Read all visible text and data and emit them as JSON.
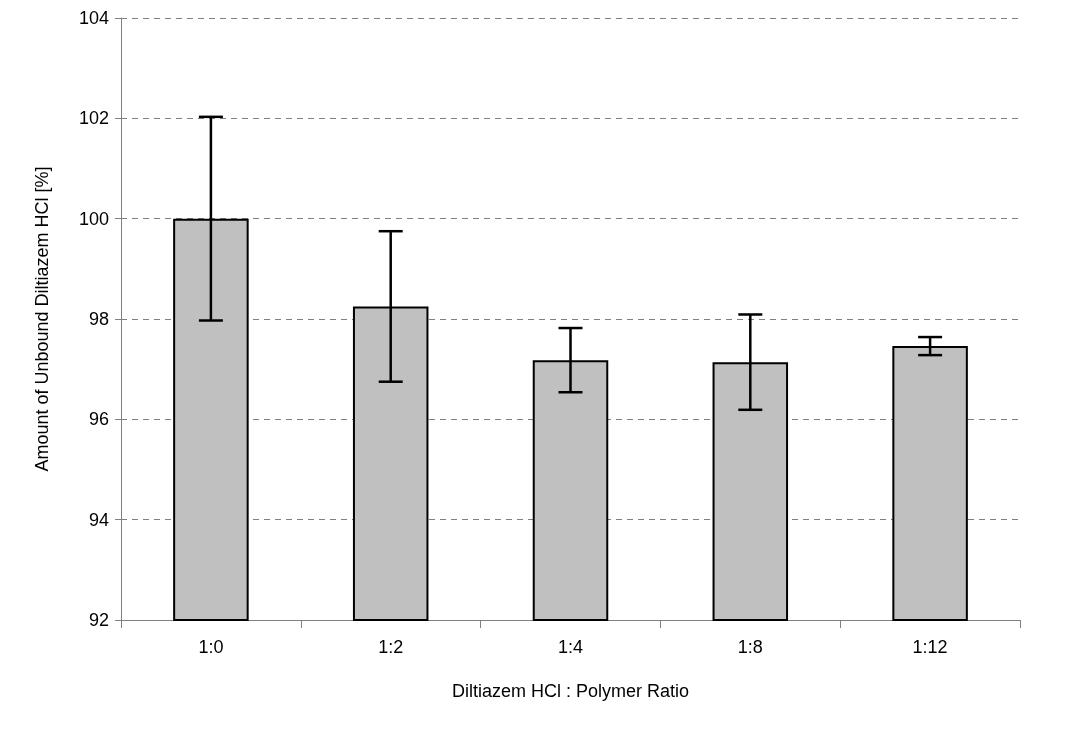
{
  "chart_data": {
    "type": "bar",
    "xlabel": "Diltiazem HCl : Polymer Ratio",
    "ylabel": "Amount of Unbound Diltiazem HCl [%]",
    "categories": [
      "1:0",
      "1:2",
      "1:4",
      "1:8",
      "1:12"
    ],
    "values": [
      100.0,
      98.25,
      97.18,
      97.14,
      97.46
    ],
    "errors": [
      2.03,
      1.5,
      0.64,
      0.95,
      0.18
    ],
    "color": "#c0c0c0",
    "ylim": [
      92,
      104
    ],
    "yticks": [
      92,
      94,
      96,
      98,
      100,
      102,
      104
    ],
    "grid": "y"
  }
}
